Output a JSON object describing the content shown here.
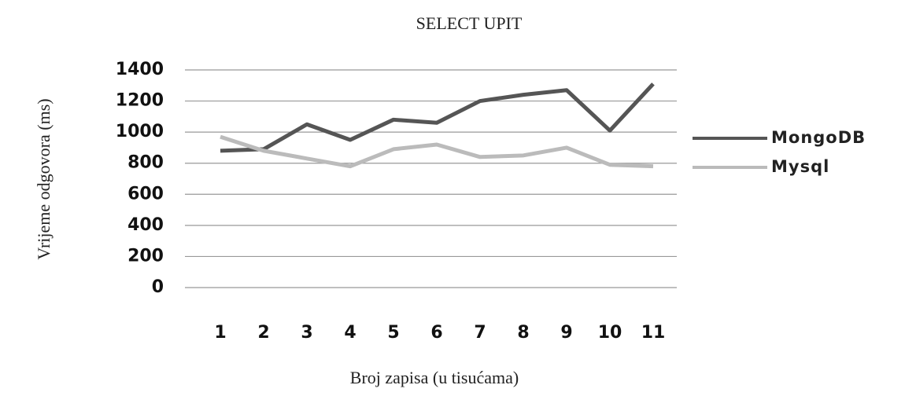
{
  "chart_data": {
    "type": "line",
    "title": "SELECT UPIT",
    "x_label": "Broj zapisa (u tisućama)",
    "y_label": "Vrijeme odgovora (ms)",
    "categories": [
      "1",
      "2",
      "3",
      "4",
      "5",
      "6",
      "7",
      "8",
      "9",
      "10",
      "11"
    ],
    "series": [
      {
        "name": "MongoDB",
        "color": "#555555",
        "values": [
          880,
          890,
          1050,
          950,
          1080,
          1060,
          1200,
          1240,
          1270,
          1010,
          1310
        ]
      },
      {
        "name": "Mysql",
        "color": "#bbbbbb",
        "values": [
          970,
          880,
          830,
          780,
          890,
          920,
          840,
          850,
          900,
          790,
          780
        ]
      }
    ],
    "ylim": [
      0,
      1400
    ],
    "yticks": [
      0,
      200,
      400,
      600,
      800,
      1000,
      1200,
      1400
    ],
    "grid": true,
    "legend": "right"
  }
}
